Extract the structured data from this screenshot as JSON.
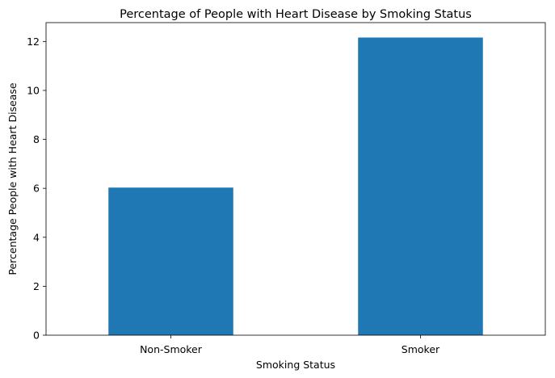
{
  "chart_data": {
    "type": "bar",
    "title": "Percentage of People with Heart Disease by Smoking Status",
    "xlabel": "Smoking Status",
    "ylabel": "Percentage People with Heart Disease",
    "categories": [
      "Non-Smoker",
      "Smoker"
    ],
    "values": [
      6.03,
      12.16
    ],
    "ylim": [
      0,
      12.77
    ],
    "yticks": [
      0,
      2,
      4,
      6,
      8,
      10,
      12
    ],
    "bar_color": "#1f77b4",
    "grid": false,
    "legend": "none"
  }
}
